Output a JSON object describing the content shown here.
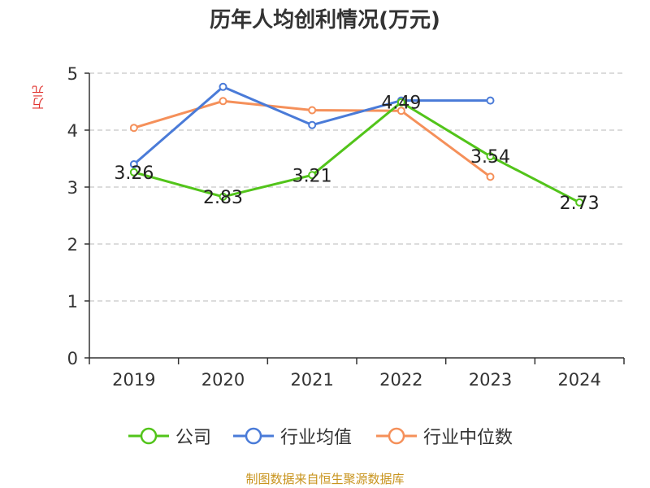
{
  "chart_data": {
    "type": "line",
    "title": "历年人均创利情况(万元)",
    "ylabel": "万元",
    "xlabel": "",
    "categories": [
      "2019",
      "2020",
      "2021",
      "2022",
      "2023",
      "2024"
    ],
    "ylim": [
      0,
      5
    ],
    "yticks": [
      "0",
      "1",
      "2",
      "3",
      "4",
      "5"
    ],
    "grid": "horizontal dashed",
    "legend_position": "bottom",
    "series": [
      {
        "name": "公司",
        "color": "#52c41a",
        "values": [
          3.26,
          2.83,
          3.21,
          4.49,
          3.54,
          2.73
        ],
        "labels": [
          "3.26",
          "2.83",
          "3.21",
          "4.49",
          "3.54",
          "2.73"
        ]
      },
      {
        "name": "行业均值",
        "color": "#4a7bd8",
        "values": [
          3.4,
          4.76,
          4.09,
          4.52,
          4.52,
          null
        ]
      },
      {
        "name": "行业中位数",
        "color": "#f5905a",
        "values": [
          4.04,
          4.51,
          4.35,
          4.34,
          3.18,
          null
        ]
      }
    ],
    "source": "制图数据来自恒生聚源数据库"
  }
}
